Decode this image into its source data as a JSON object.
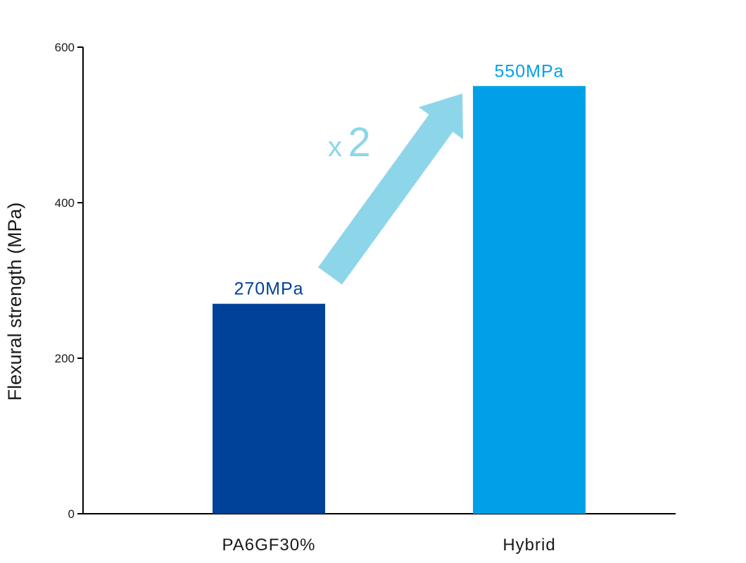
{
  "chart_data": {
    "type": "bar",
    "title": "",
    "xlabel": "",
    "ylabel": "Flexural strength (MPa)",
    "ylim": [
      0,
      600
    ],
    "yticks": [
      0,
      200,
      400,
      600
    ],
    "categories": [
      "PA6GF30%",
      "Hybrid"
    ],
    "values": [
      270,
      550
    ],
    "data_labels": [
      "270MPa",
      "550MPa"
    ],
    "bar_colors": [
      "#00419a",
      "#00a0e9"
    ],
    "annotation": {
      "type": "arrow",
      "from_category": "PA6GF30%",
      "to_category": "Hybrid",
      "prefix": "x",
      "multiplier": "2",
      "color": "#8dd6ea"
    },
    "grid": false,
    "legend": "none"
  }
}
